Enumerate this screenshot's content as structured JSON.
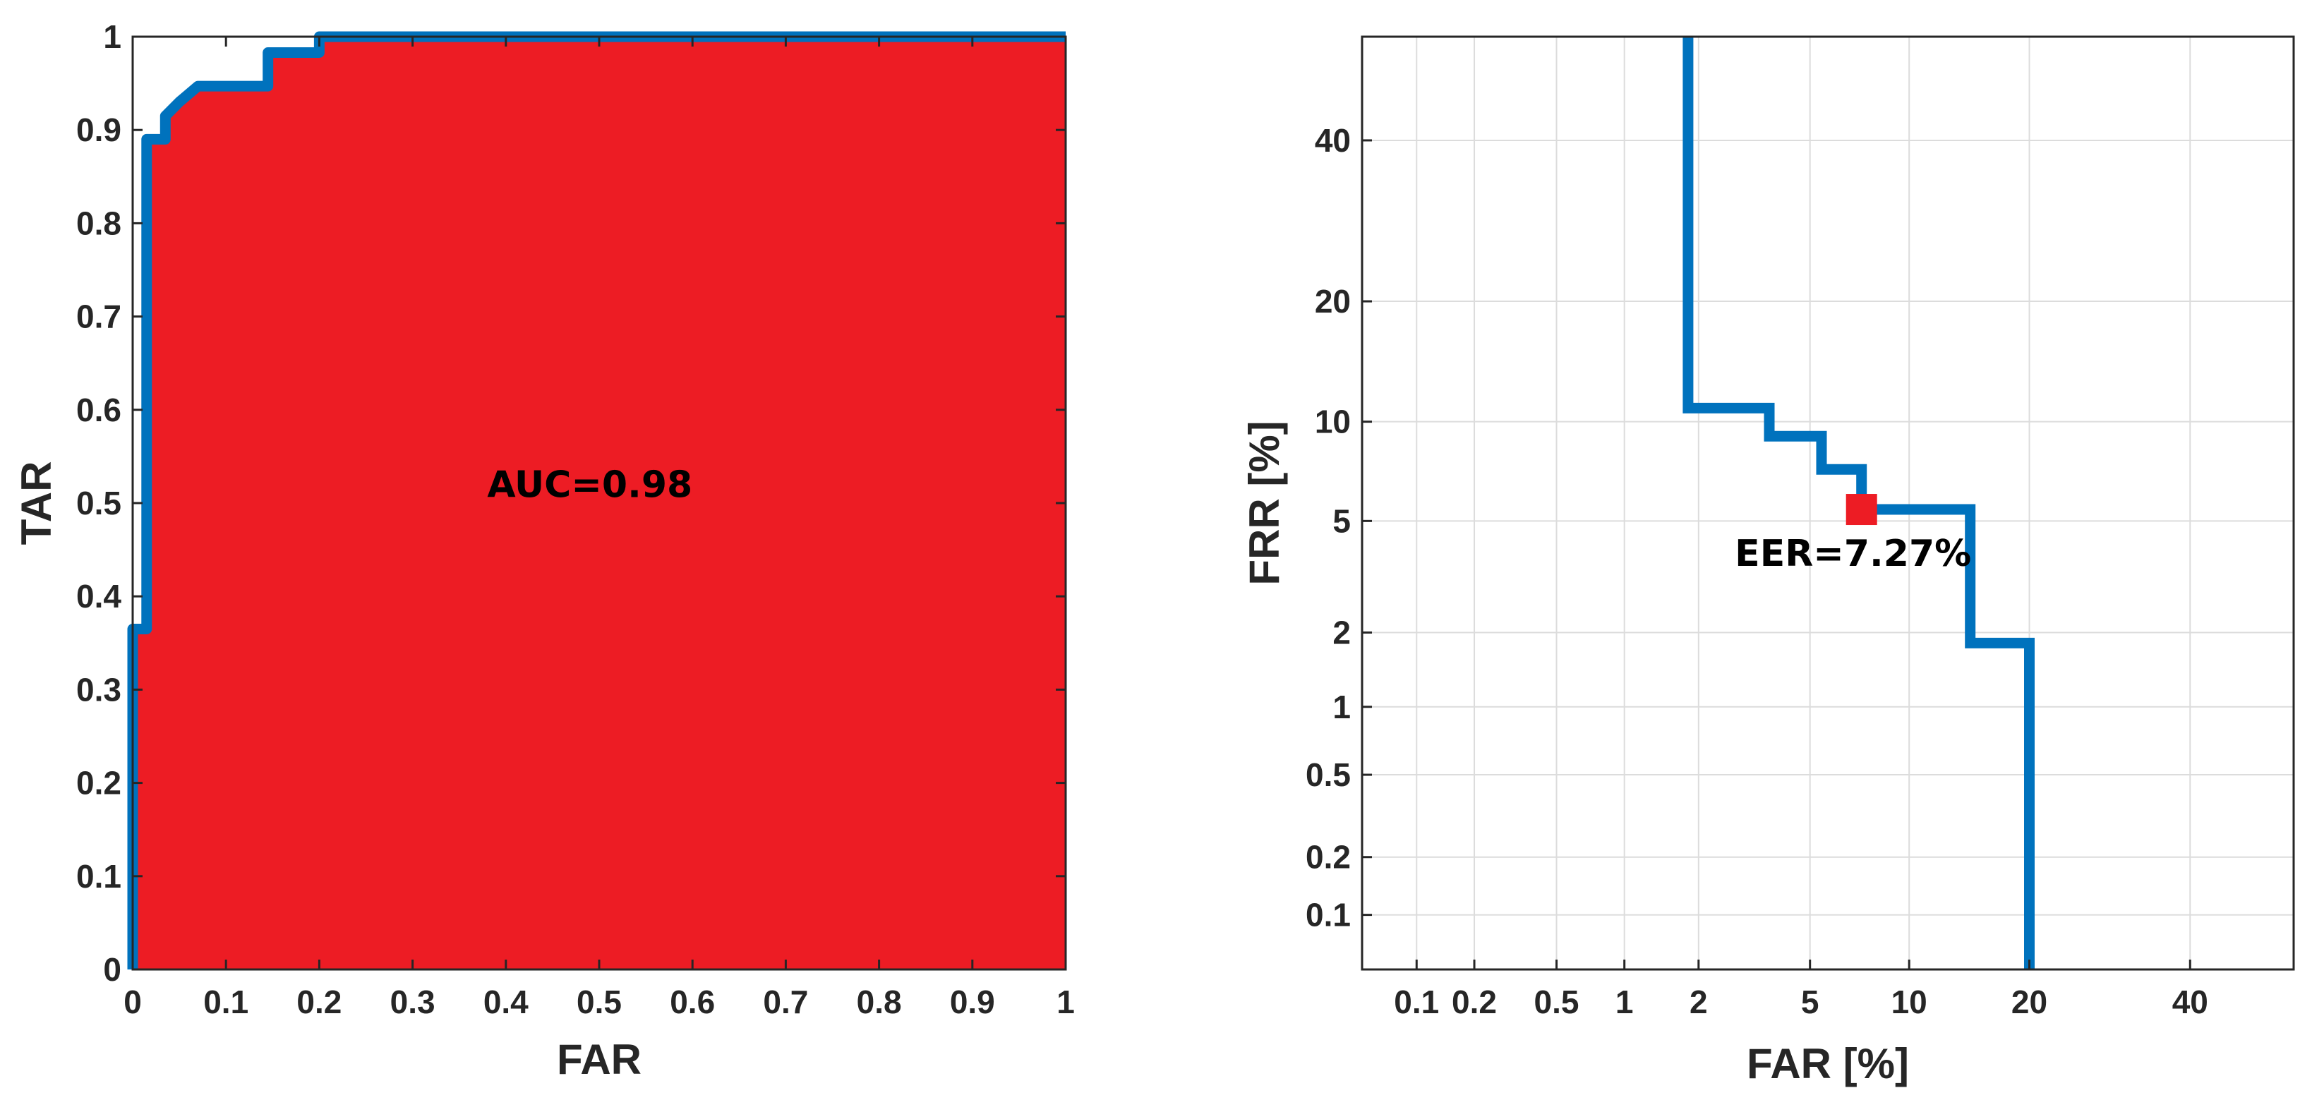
{
  "chart_data": [
    {
      "type": "area",
      "xlabel": "FAR",
      "ylabel": "TAR",
      "xlim": [
        0,
        1
      ],
      "ylim": [
        0,
        1
      ],
      "xticks": [
        0,
        0.1,
        0.2,
        0.3,
        0.4,
        0.5,
        0.6,
        0.7,
        0.8,
        0.9,
        1
      ],
      "xtick_labels": [
        "0",
        "0.1",
        "0.2",
        "0.3",
        "0.4",
        "0.5",
        "0.6",
        "0.7",
        "0.8",
        "0.9",
        "1"
      ],
      "yticks": [
        0,
        0.1,
        0.2,
        0.3,
        0.4,
        0.5,
        0.6,
        0.7,
        0.8,
        0.9,
        1
      ],
      "ytick_labels": [
        "0",
        "0.1",
        "0.2",
        "0.3",
        "0.4",
        "0.5",
        "0.6",
        "0.7",
        "0.8",
        "0.9",
        "1"
      ],
      "grid": false,
      "line_color": "#0072BD",
      "fill_color": "#ED1C24",
      "annotation": {
        "text": "AUC=0.98",
        "x": 0.49,
        "y": 0.52
      },
      "series": [
        {
          "x": [
            0,
            0,
            0.015,
            0.015,
            0.035,
            0.035,
            0.05,
            0.05,
            0.07,
            0.07,
            0.145,
            0.145,
            0.2,
            0.2,
            1
          ],
          "y": [
            0,
            0.365,
            0.365,
            0.89,
            0.89,
            0.915,
            0.93,
            0.93,
            0.947,
            0.947,
            0.947,
            0.983,
            0.983,
            1,
            1
          ]
        }
      ]
    },
    {
      "type": "line",
      "xlabel": "FAR [%]",
      "ylabel": "FRR [%]",
      "xscale": "probit",
      "yscale": "probit",
      "xlim": [
        0.05,
        55
      ],
      "ylim": [
        0.05,
        55
      ],
      "xticks": [
        0.1,
        0.2,
        0.5,
        1,
        2,
        5,
        10,
        20,
        40
      ],
      "xtick_labels": [
        "0.1",
        "0.2",
        "0.5",
        "1",
        "2",
        "5",
        "10",
        "20",
        "40"
      ],
      "yticks": [
        0.1,
        0.2,
        0.5,
        1,
        2,
        5,
        10,
        20,
        40
      ],
      "ytick_labels": [
        "0.1",
        "0.2",
        "0.5",
        "1",
        "2",
        "5",
        "10",
        "20",
        "40"
      ],
      "grid": true,
      "line_color": "#0072BD",
      "marker_color": "#ED1C24",
      "series": [
        {
          "x": [
            1.82,
            1.82,
            3.64,
            3.64,
            5.45,
            5.45,
            7.27,
            7.27,
            14.5,
            14.5,
            20.0,
            20.0
          ],
          "y": [
            55,
            10.9,
            10.9,
            9.1,
            9.1,
            7.27,
            7.27,
            5.45,
            5.45,
            1.82,
            1.82,
            0.05
          ]
        }
      ],
      "marker": {
        "x": 7.27,
        "y": 5.45
      },
      "annotation": {
        "text": "EER=7.27%",
        "x": 7.27,
        "y": 5.45
      }
    }
  ]
}
